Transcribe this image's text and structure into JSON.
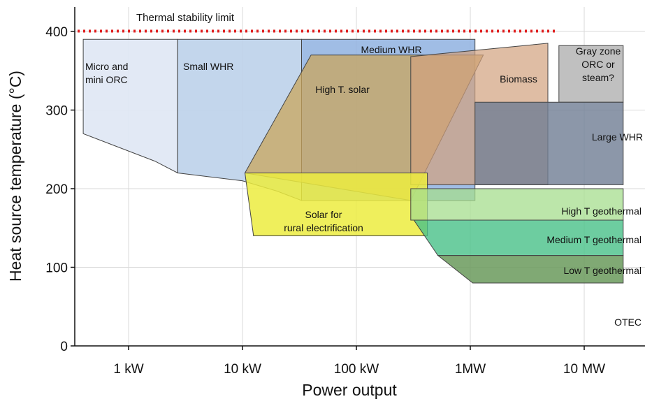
{
  "chart_data": {
    "type": "area",
    "title": "",
    "xlabel": "Power output",
    "ylabel": "Heat source temperature (°C)",
    "x_scale": "log",
    "x_unit": "kW",
    "xlim_kw": [
      0.35,
      22000
    ],
    "ylim": [
      0,
      420
    ],
    "x_ticks": [
      {
        "value_kw": 1,
        "label": "1 kW"
      },
      {
        "value_kw": 10,
        "label": "10 kW"
      },
      {
        "value_kw": 100,
        "label": "100 kW"
      },
      {
        "value_kw": 1000,
        "label": "1MW"
      },
      {
        "value_kw": 10000,
        "label": "10 MW"
      }
    ],
    "y_ticks": [
      0,
      100,
      200,
      300,
      400
    ],
    "grid": true,
    "reference_line": {
      "label": "Thermal stability limit",
      "y": 400,
      "color": "#e02020",
      "style": "dotted"
    },
    "regions": [
      {
        "name": "Micro and mini ORC",
        "label_lines": [
          "Micro and",
          "mini ORC"
        ],
        "fill": "#dfe7f4",
        "opacity": 0.9,
        "polygon": [
          [
            0.4,
            390
          ],
          [
            2.7,
            390
          ],
          [
            2.7,
            220
          ],
          [
            1.7,
            235
          ],
          [
            0.4,
            270
          ]
        ]
      },
      {
        "name": "Small WHR",
        "label_lines": [
          "Small WHR"
        ],
        "fill": "#bcd1ea",
        "opacity": 0.9,
        "polygon": [
          [
            2.7,
            390
          ],
          [
            33,
            390
          ],
          [
            33,
            185
          ],
          [
            20,
            197
          ],
          [
            10,
            210
          ],
          [
            2.7,
            220
          ]
        ]
      },
      {
        "name": "Medium WHR",
        "label_lines": [
          "Medium WHR"
        ],
        "fill": "#8fb2e0",
        "opacity": 0.85,
        "polygon": [
          [
            33,
            390
          ],
          [
            1100,
            390
          ],
          [
            1100,
            185
          ],
          [
            33,
            185
          ]
        ]
      },
      {
        "name": "High T. solar",
        "label_lines": [
          "High T. solar"
        ],
        "fill": "#c9a65c",
        "opacity": 0.75,
        "polygon": [
          [
            40,
            370
          ],
          [
            1300,
            370
          ],
          [
            300,
            185
          ],
          [
            10.5,
            220
          ]
        ]
      },
      {
        "name": "Biomass",
        "label_lines": [
          "Biomass"
        ],
        "fill": "#d1a17e",
        "opacity": 0.7,
        "polygon": [
          [
            300,
            368
          ],
          [
            4800,
            385
          ],
          [
            4800,
            205
          ],
          [
            300,
            205
          ]
        ]
      },
      {
        "name": "Gray zone ORC or steam?",
        "label_lines": [
          "Gray zone",
          "ORC or",
          "steam?"
        ],
        "fill": "#c0c0c0",
        "opacity": 1,
        "polygon": [
          [
            6000,
            382
          ],
          [
            22000,
            382
          ],
          [
            22000,
            310
          ],
          [
            6000,
            310
          ]
        ]
      },
      {
        "name": "Large WHR",
        "label_lines": [
          "Large WHR"
        ],
        "fill": "#6f7d93",
        "opacity": 0.8,
        "polygon": [
          [
            1100,
            310
          ],
          [
            22000,
            310
          ],
          [
            22000,
            205
          ],
          [
            1100,
            205
          ]
        ]
      },
      {
        "name": "Solar for rural electrification",
        "label_lines": [
          "Solar for",
          "rural electrification"
        ],
        "fill": "#ecec40",
        "opacity": 0.85,
        "polygon": [
          [
            10.5,
            220
          ],
          [
            420,
            220
          ],
          [
            420,
            140
          ],
          [
            12.5,
            140
          ]
        ]
      },
      {
        "name": "High T geothermal",
        "label_lines": [
          "High T geothermal"
        ],
        "fill": "#a6dd8e",
        "opacity": 0.75,
        "polygon": [
          [
            300,
            200
          ],
          [
            22000,
            200
          ],
          [
            22000,
            160
          ],
          [
            300,
            160
          ]
        ]
      },
      {
        "name": "Medium T geothermal",
        "label_lines": [
          "Medium T geothermal"
        ],
        "fill": "#48c088",
        "opacity": 0.8,
        "polygon": [
          [
            320,
            160
          ],
          [
            22000,
            160
          ],
          [
            22000,
            115
          ],
          [
            520,
            115
          ]
        ]
      },
      {
        "name": "Low T geothermal",
        "label_lines": [
          "Low T geothermal"
        ],
        "fill": "#6a9a5c",
        "opacity": 0.85,
        "polygon": [
          [
            520,
            115
          ],
          [
            22000,
            115
          ],
          [
            22000,
            80
          ],
          [
            1050,
            80
          ]
        ]
      },
      {
        "name": "OTEC",
        "label_lines": [
          "OTEC"
        ],
        "fill": "#ffffff",
        "opacity": 0,
        "polygon": [
          [
            15000,
            35
          ],
          [
            22000,
            35
          ],
          [
            22000,
            25
          ],
          [
            15000,
            25
          ]
        ]
      }
    ]
  }
}
